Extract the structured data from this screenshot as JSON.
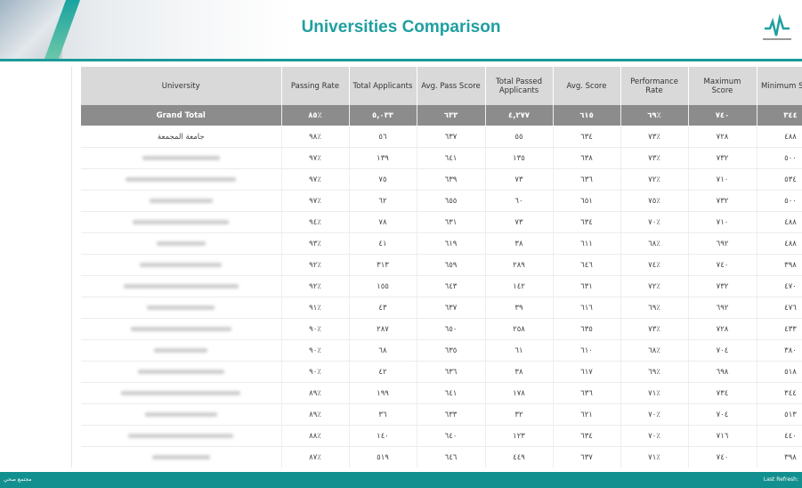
{
  "header": {
    "title": "Universities Comparison"
  },
  "table": {
    "columns": [
      "University",
      "Passing Rate",
      "Total Applicants",
      "Avg. Pass Score",
      "Total Passed Applicants",
      "Avg. Score",
      "Performance Rate",
      "Maximum Score",
      "Minimum Score"
    ],
    "total": {
      "university": "Grand Total",
      "cells": [
        "٨٥٪",
        "٥,٠٣٣",
        "٦٣٣",
        "٤,٢٧٧",
        "٦١٥",
        "٦٩٪",
        "٧٤٠",
        "٣٤٤"
      ]
    },
    "rows": [
      {
        "university": "جامعة المجمعة",
        "cells": [
          "٩٨٪",
          "٥٦",
          "٦٣٧",
          "٥٥",
          "٦٣٤",
          "٧٣٪",
          "٧٢٨",
          "٤٨٨"
        ]
      },
      {
        "cells": [
          "٩٧٪",
          "١٣٩",
          "٦٤١",
          "١٣٥",
          "٦٣٨",
          "٧٣٪",
          "٧٣٢",
          "٥٠٠"
        ]
      },
      {
        "cells": [
          "٩٧٪",
          "٧٥",
          "٦٣٩",
          "٧٣",
          "٦٣٦",
          "٧٢٪",
          "٧١٠",
          "٥٣٤"
        ]
      },
      {
        "cells": [
          "٩٧٪",
          "٦٢",
          "٦٥٥",
          "٦٠",
          "٦٥١",
          "٧٥٪",
          "٧٣٢",
          "٥٠٠"
        ]
      },
      {
        "cells": [
          "٩٤٪",
          "٧٨",
          "٦٣١",
          "٧٣",
          "٦٣٤",
          "٧٠٪",
          "٧١٠",
          "٤٨٨"
        ]
      },
      {
        "cells": [
          "٩٣٪",
          "٤١",
          "٦١٩",
          "٣٨",
          "٦١١",
          "٦٨٪",
          "٦٩٢",
          "٤٨٨"
        ]
      },
      {
        "cells": [
          "٩٢٪",
          "٣١٣",
          "٦٥٩",
          "٢٨٩",
          "٦٤٦",
          "٧٤٪",
          "٧٤٠",
          "٣٩٨"
        ]
      },
      {
        "cells": [
          "٩٢٪",
          "١٥٥",
          "٦٤٣",
          "١٤٢",
          "٦٣١",
          "٧٢٪",
          "٧٣٢",
          "٤٧٠"
        ]
      },
      {
        "cells": [
          "٩١٪",
          "٤٣",
          "٦٣٧",
          "٣٩",
          "٦١٦",
          "٦٩٪",
          "٦٩٢",
          "٤٧٦"
        ]
      },
      {
        "cells": [
          "٩٠٪",
          "٢٨٧",
          "٦٥٠",
          "٢٥٨",
          "٦٣٥",
          "٧٣٪",
          "٧٢٨",
          "٤٣٣"
        ]
      },
      {
        "cells": [
          "٩٠٪",
          "٦٨",
          "٦٣٥",
          "٦١",
          "٦١٠",
          "٦٨٪",
          "٧٠٤",
          "٣٨٠"
        ]
      },
      {
        "cells": [
          "٩٠٪",
          "٤٢",
          "٦٣٦",
          "٣٨",
          "٦١٧",
          "٦٩٪",
          "٦٩٨",
          "٥١٨"
        ]
      },
      {
        "cells": [
          "٨٩٪",
          "١٩٩",
          "٦٤١",
          "١٧٨",
          "٦٣٦",
          "٧١٪",
          "٧٣٤",
          "٣٤٤"
        ]
      },
      {
        "cells": [
          "٨٩٪",
          "٣٦",
          "٦٣٣",
          "٣٢",
          "٦٢١",
          "٧٠٪",
          "٧٠٤",
          "٥١٣"
        ]
      },
      {
        "cells": [
          "٨٨٪",
          "١٤٠",
          "٦٤٠",
          "١٢٣",
          "٦٣٤",
          "٧٠٪",
          "٧١٦",
          "٤٤٠"
        ]
      },
      {
        "cells": [
          "٨٧٪",
          "٥١٩",
          "٦٤٦",
          "٤٤٩",
          "٦٣٧",
          "٧١٪",
          "٧٤٠",
          "٣٩٨"
        ]
      }
    ]
  },
  "footer": {
    "left": "مجتمع صحي",
    "right": "Last Refresh:"
  }
}
